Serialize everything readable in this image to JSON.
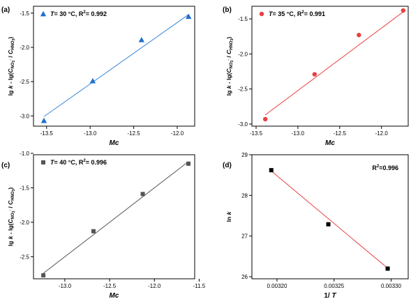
{
  "figure": {
    "panels": [
      {
        "letter": "(a)",
        "ylabel": "lg k - lg(C NO3- / C HNO3)",
        "xlabel": "Mc",
        "legend": {
          "T_label": "T",
          "rest": "= 30 °C, R",
          "sup": "2",
          "r2": "= 0.992"
        }
      },
      {
        "letter": "(b)",
        "ylabel": "lg k - lg(C NO3- / C HNO3)",
        "xlabel": "Mc",
        "legend": {
          "T_label": "T",
          "rest": "= 35 °C, R",
          "sup": "2",
          "r2": "= 0.991"
        }
      },
      {
        "letter": "(c)",
        "ylabel": "lg k - lg(C NO3- / C HNO3)",
        "xlabel": "Mc",
        "legend": {
          "T_label": "T",
          "rest": "= 40 °C, R",
          "sup": "2",
          "r2": "= 0.996"
        }
      },
      {
        "letter": "(d)",
        "ylabel": "ln k",
        "xlabel": "1/ T",
        "legend": {
          "T_label": "",
          "rest": "R",
          "sup": "2",
          "r2": "=0.996"
        }
      }
    ]
  },
  "chart_data": [
    {
      "type": "scatter",
      "title": "",
      "xlabel": "Mc",
      "ylabel": "lg k - lg(C NO3- / C HNO3)",
      "xlim": [
        -13.65,
        -11.8
      ],
      "ylim": [
        -3.15,
        -1.4
      ],
      "xticks": [
        -13.5,
        -13.0,
        -12.5,
        -12.0
      ],
      "xtick_labels": [
        "-13.5",
        "-13.0",
        "-12.5",
        "-12.0"
      ],
      "yticks": [
        -3.0,
        -2.5,
        -2.0,
        -1.5
      ],
      "ytick_labels": [
        "-3.0",
        "-2.5",
        "-2.0",
        "-1.5"
      ],
      "marker": "triangle",
      "color": "#1f6fd1",
      "fit_color": "#3a86d8",
      "series": [
        {
          "name": "T= 30 °C, R2= 0.992",
          "x": [
            -13.53,
            -12.97,
            -12.41,
            -11.87
          ],
          "y": [
            -3.07,
            -2.49,
            -1.89,
            -1.55
          ]
        }
      ],
      "fit": {
        "x": [
          -13.53,
          -11.87
        ],
        "y": [
          -3.01,
          -1.52
        ]
      },
      "legend_position": "top-left"
    },
    {
      "type": "scatter",
      "title": "",
      "xlabel": "Mc",
      "ylabel": "lg k - lg(C NO3- / C HNO3)",
      "xlim": [
        -13.55,
        -11.68
      ],
      "ylim": [
        -3.03,
        -1.32
      ],
      "xticks": [
        -13.5,
        -13.0,
        -12.5,
        -12.0
      ],
      "xtick_labels": [
        "-13.5",
        "-13.0",
        "-12.5",
        "-12.0"
      ],
      "yticks": [
        -3.0,
        -2.5,
        -2.0,
        -1.5
      ],
      "ytick_labels": [
        "-3.0",
        "-2.5",
        "-2.0",
        "-1.5"
      ],
      "marker": "circle",
      "color": "#e84040",
      "fit_color": "#e84040",
      "series": [
        {
          "name": "T= 35 °C, R2= 0.991",
          "x": [
            -13.39,
            -12.8,
            -12.27,
            -11.74
          ],
          "y": [
            -2.93,
            -2.29,
            -1.73,
            -1.38
          ]
        }
      ],
      "fit": {
        "x": [
          -13.39,
          -11.74
        ],
        "y": [
          -2.87,
          -1.4
        ]
      },
      "legend_position": "top-left"
    },
    {
      "type": "scatter",
      "title": "",
      "xlabel": "Mc",
      "ylabel": "lg k - lg(C NO3- / C HNO3)",
      "xlim": [
        -13.35,
        -11.55
      ],
      "ylim": [
        -2.82,
        -1.02
      ],
      "xticks": [
        -13.0,
        -12.5,
        -12.0,
        -11.5
      ],
      "xtick_labels": [
        "-13.0",
        "-12.5",
        "-12.0",
        "-11.5"
      ],
      "yticks": [
        -2.5,
        -2.0,
        -1.5,
        -1.0
      ],
      "ytick_labels": [
        "-2.5",
        "-2.0",
        "-1.5",
        "-1.0"
      ],
      "marker": "square",
      "color": "#555555",
      "fit_color": "#555555",
      "series": [
        {
          "name": "T= 40 °C, R2= 0.996",
          "x": [
            -13.24,
            -12.68,
            -12.13,
            -11.62
          ],
          "y": [
            -2.77,
            -2.13,
            -1.59,
            -1.15
          ]
        }
      ],
      "fit": {
        "x": [
          -13.24,
          -11.62
        ],
        "y": [
          -2.74,
          -1.12
        ]
      },
      "legend_position": "top-left"
    },
    {
      "type": "scatter",
      "title": "",
      "xlabel": "1/ T",
      "ylabel": "ln k",
      "xlim": [
        0.003178,
        0.003315
      ],
      "ylim": [
        25.95,
        29.0
      ],
      "xticks": [
        0.0032,
        0.00325,
        0.0033
      ],
      "xtick_labels": [
        "0.00320",
        "0.00325",
        "0.00330"
      ],
      "yticks": [
        26,
        27,
        28,
        29
      ],
      "ytick_labels": [
        "26",
        "27",
        "28",
        "29"
      ],
      "marker": "square",
      "color": "#000000",
      "fit_color": "#e84040",
      "series": [
        {
          "name": "",
          "x": [
            0.003195,
            0.003245,
            0.003297
          ],
          "y": [
            28.62,
            27.29,
            26.2
          ]
        }
      ],
      "fit": {
        "x": [
          0.003195,
          0.003297
        ],
        "y": [
          28.6,
          26.21
        ]
      },
      "legend_position": "top-right"
    }
  ]
}
